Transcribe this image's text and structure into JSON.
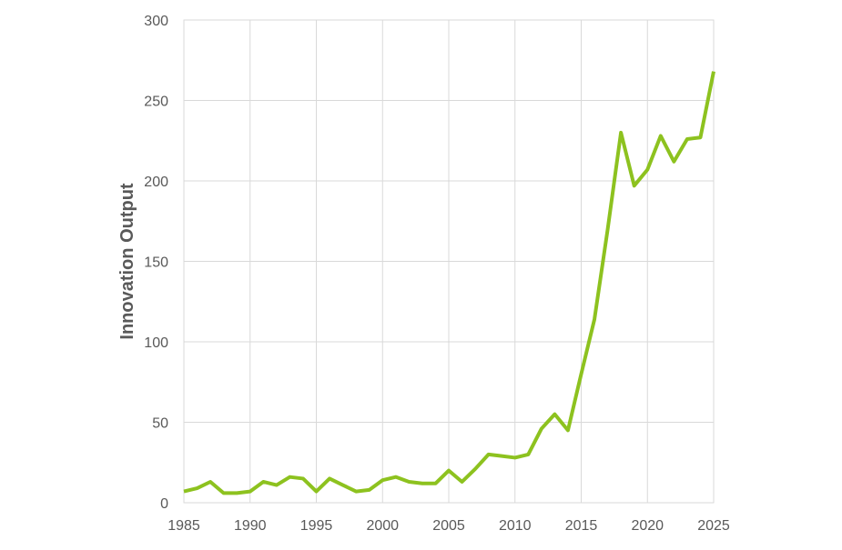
{
  "chart_data": {
    "type": "line",
    "title": "",
    "xlabel": "",
    "ylabel": "Innovation Output",
    "xlim": [
      1985,
      2025
    ],
    "ylim": [
      0,
      300
    ],
    "x_ticks": [
      "1985",
      "1990",
      "1995",
      "2000",
      "2005",
      "2010",
      "2015",
      "2020",
      "2025"
    ],
    "y_ticks": [
      "0",
      "50",
      "100",
      "150",
      "200",
      "250",
      "300"
    ],
    "grid": true,
    "legend": "none",
    "series": [
      {
        "color": "#8dc21f",
        "x": [
          1985,
          1986,
          1987,
          1988,
          1989,
          1990,
          1991,
          1992,
          1993,
          1994,
          1995,
          1996,
          1997,
          1998,
          1999,
          2000,
          2001,
          2002,
          2003,
          2004,
          2005,
          2006,
          2007,
          2008,
          2009,
          2010,
          2011,
          2012,
          2013,
          2014,
          2015,
          2016,
          2017,
          2018,
          2019,
          2020,
          2021,
          2022,
          2023,
          2024,
          2025
        ],
        "y": [
          7,
          9,
          13,
          6,
          6,
          7,
          13,
          11,
          16,
          15,
          7,
          15,
          11,
          7,
          8,
          14,
          16,
          13,
          12,
          12,
          20,
          13,
          21,
          30,
          29,
          28,
          30,
          46,
          55,
          45,
          80,
          114,
          170,
          230,
          197,
          207,
          228,
          212,
          226,
          227,
          268
        ]
      }
    ]
  }
}
